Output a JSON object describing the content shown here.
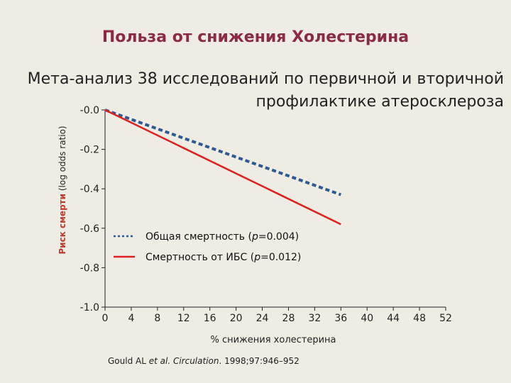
{
  "title": "Польза от снижения Холестерина",
  "subtitle": "Мета-анализ 38 исследований по первичной и вторичной профилактике атеросклероза",
  "source": {
    "author": "Gould AL ",
    "etal": "et al. Circulation",
    "rest": ". 1998;97:946–952"
  },
  "chart_data": {
    "type": "line",
    "ylabel_highlight": "Риск смерти",
    "ylabel_rest": " (log odds ratio)",
    "xlabel": "% снижения холестерина",
    "x_ticks": [
      "0",
      "4",
      "8",
      "12",
      "16",
      "20",
      "24",
      "28",
      "32",
      "36",
      "40",
      "44",
      "48",
      "52"
    ],
    "y_ticks": [
      "-0.0",
      "-0.2",
      "-0.4",
      "-0.6",
      "-0.8",
      "-1.0"
    ],
    "xlim": [
      0,
      52
    ],
    "ylim": [
      -1.0,
      0
    ],
    "series": [
      {
        "name": "Общая смертность (p=0.004)",
        "style": "dotted",
        "color": "#2e5a91",
        "x": [
          0,
          36
        ],
        "y": [
          0.0,
          -0.43
        ]
      },
      {
        "name": "Смертность от ИБС (p=0.012)",
        "style": "solid",
        "color": "#e02020",
        "x": [
          0,
          36
        ],
        "y": [
          0.0,
          -0.58
        ]
      }
    ],
    "grid": false,
    "legend_position": "center-right"
  }
}
